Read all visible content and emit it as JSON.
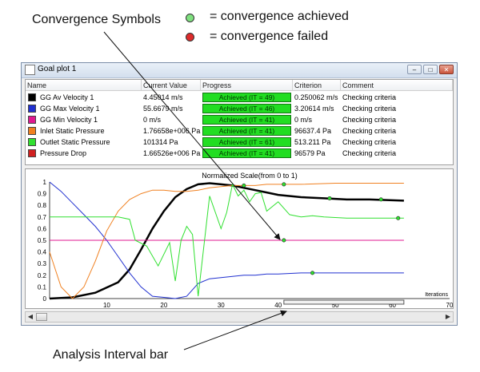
{
  "annotations": {
    "convergence_symbols": "Convergence Symbols",
    "achieved_legend": "= convergence achieved",
    "failed_legend": "= convergence failed",
    "analysis_interval": "Analysis Interval bar"
  },
  "colors": {
    "achieved_dot": "#7fe07f",
    "failed_dot": "#dd2b2b",
    "progress_fill": "#22dd22"
  },
  "window": {
    "title": "Goal plot 1",
    "buttons": {
      "minimize": "–",
      "maximize": "□",
      "close": "✕"
    }
  },
  "table": {
    "columns": [
      "Name",
      "Current Value",
      "Progress",
      "Criterion",
      "Comment"
    ],
    "rows": [
      {
        "color": "#000000",
        "name": "GG Av Velocity 1",
        "current": "4.45014 m/s",
        "progress": "Achieved (IT = 49)",
        "criterion": "0.250062 m/s",
        "comment": "Checking criteria"
      },
      {
        "color": "#2030d0",
        "name": "GG Max Velocity 1",
        "current": "55.6679 m/s",
        "progress": "Achieved (IT = 46)",
        "criterion": "3.20614 m/s",
        "comment": "Checking criteria"
      },
      {
        "color": "#e01890",
        "name": "GG Min Velocity 1",
        "current": "0 m/s",
        "progress": "Achieved (IT = 41)",
        "criterion": "0 m/s",
        "comment": "Checking criteria"
      },
      {
        "color": "#f08020",
        "name": "Inlet Static Pressure",
        "current": "1.76658e+006 Pa",
        "progress": "Achieved (IT = 41)",
        "criterion": "96637.4 Pa",
        "comment": "Checking criteria"
      },
      {
        "color": "#30e030",
        "name": "Outlet Static Pressure",
        "current": "101314 Pa",
        "progress": "Achieved (IT = 61)",
        "criterion": "513.211 Pa",
        "comment": "Checking criteria"
      },
      {
        "color": "#d02020",
        "name": "Pressure Drop",
        "current": "1.66526e+006 Pa",
        "progress": "Achieved (IT = 41)",
        "criterion": "96579 Pa",
        "comment": "Checking criteria"
      }
    ]
  },
  "chart_data": {
    "type": "line",
    "title": "Normalized Scale(from 0 to 1)",
    "xlabel": "Iterations",
    "ylabel": "",
    "xlim": [
      0,
      70
    ],
    "ylim": [
      0,
      1
    ],
    "xticks": [
      10,
      20,
      30,
      40,
      50,
      60,
      70
    ],
    "yticks": [
      0.0,
      0.1,
      0.2,
      0.3,
      0.4,
      0.5,
      0.6,
      0.7,
      0.8,
      0.9,
      1.0
    ],
    "analysis_interval": [
      41,
      62
    ],
    "series": [
      {
        "color": "#000000",
        "width": 2.5,
        "x": [
          0,
          4,
          8,
          12,
          14,
          16,
          18,
          20,
          22,
          24,
          26,
          28,
          30,
          32,
          34,
          36,
          38,
          40,
          44,
          48,
          52,
          56,
          62
        ],
        "y": [
          0,
          0.01,
          0.05,
          0.14,
          0.25,
          0.42,
          0.6,
          0.75,
          0.87,
          0.94,
          0.98,
          0.99,
          0.98,
          0.97,
          0.95,
          0.93,
          0.91,
          0.89,
          0.87,
          0.86,
          0.85,
          0.85,
          0.84
        ]
      },
      {
        "color": "#2030d0",
        "width": 1,
        "x": [
          0,
          2,
          4,
          6,
          8,
          10,
          12,
          14,
          16,
          18,
          20,
          22,
          24,
          26,
          28,
          30,
          32,
          34,
          36,
          38,
          40,
          44,
          50,
          56,
          62
        ],
        "y": [
          1.0,
          0.92,
          0.82,
          0.72,
          0.62,
          0.5,
          0.36,
          0.22,
          0.1,
          0.02,
          0.01,
          0.0,
          0.02,
          0.13,
          0.17,
          0.18,
          0.19,
          0.2,
          0.2,
          0.21,
          0.21,
          0.22,
          0.22,
          0.22,
          0.22
        ]
      },
      {
        "color": "#e01890",
        "width": 1,
        "x": [
          0,
          62
        ],
        "y": [
          0.5,
          0.5
        ]
      },
      {
        "color": "#f08020",
        "width": 1,
        "x": [
          0,
          2,
          4,
          6,
          8,
          10,
          12,
          14,
          16,
          18,
          20,
          22,
          24,
          26,
          28,
          30,
          32,
          34,
          36,
          38,
          40,
          44,
          50,
          56,
          62
        ],
        "y": [
          0.4,
          0.1,
          0.0,
          0.1,
          0.32,
          0.58,
          0.75,
          0.85,
          0.9,
          0.93,
          0.93,
          0.92,
          0.92,
          0.93,
          0.95,
          0.96,
          0.97,
          0.97,
          0.97,
          0.98,
          0.98,
          0.98,
          0.99,
          0.99,
          0.99
        ]
      },
      {
        "color": "#30e030",
        "width": 1,
        "x": [
          0,
          6,
          12,
          14,
          15,
          17,
          19,
          21,
          22,
          23,
          24,
          25,
          26,
          28,
          30,
          31,
          32,
          33,
          34,
          35,
          36,
          37,
          38,
          40,
          42,
          44,
          46,
          48,
          52,
          56,
          62
        ],
        "y": [
          0.7,
          0.7,
          0.7,
          0.68,
          0.5,
          0.45,
          0.28,
          0.48,
          0.15,
          0.5,
          0.62,
          0.55,
          0.02,
          0.88,
          0.6,
          0.74,
          0.98,
          0.88,
          0.93,
          0.83,
          0.9,
          0.91,
          0.75,
          0.83,
          0.72,
          0.7,
          0.71,
          0.7,
          0.69,
          0.69,
          0.69
        ]
      }
    ],
    "markers": [
      {
        "x": 41,
        "y": 0.5,
        "color": "#30e030"
      },
      {
        "x": 41,
        "y": 0.98,
        "color": "#30e030"
      },
      {
        "x": 49,
        "y": 0.86,
        "color": "#30e030"
      },
      {
        "x": 46,
        "y": 0.22,
        "color": "#30e030"
      },
      {
        "x": 61,
        "y": 0.69,
        "color": "#30e030"
      },
      {
        "x": 34,
        "y": 0.97,
        "color": "#30e030"
      },
      {
        "x": 58,
        "y": 0.85,
        "color": "#30e030"
      }
    ]
  }
}
